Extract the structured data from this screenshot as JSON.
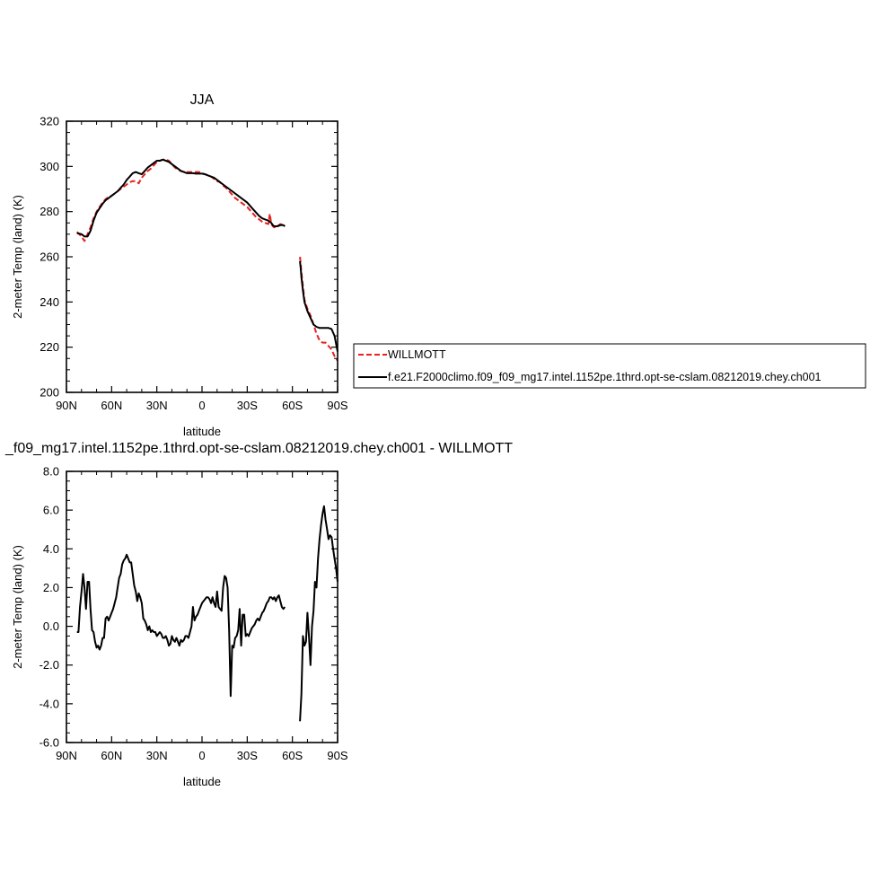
{
  "chart_data": [
    {
      "type": "line",
      "title": "JJA",
      "xlabel": "latitude",
      "ylabel": "2-meter Temp (land) (K)",
      "xlim": [
        90,
        -90
      ],
      "ylim": [
        200,
        320
      ],
      "xtick_values": [
        90,
        60,
        30,
        0,
        -30,
        -60,
        -90
      ],
      "xtick_labels": [
        "90N",
        "60N",
        "30N",
        "0",
        "30S",
        "60S",
        "90S"
      ],
      "ytick_values": [
        200,
        220,
        240,
        260,
        280,
        300,
        320
      ],
      "ytick_labels": [
        "200",
        "220",
        "240",
        "260",
        "280",
        "300",
        "320"
      ],
      "legend": {
        "placement": "right",
        "entries": [
          {
            "label": "WILLMOTT",
            "color": "#e8201e",
            "dash": "dashed"
          },
          {
            "label": "f.e21.F2000climo.f09_f09_mg17.intel.1152pe.1thrd.opt-se-cslam.08212019.chey.ch001",
            "color": "#000000",
            "dash": "solid"
          }
        ]
      },
      "series": [
        {
          "name": "WILLMOTT",
          "color": "#e8201e",
          "segments": [
            {
              "x": [
                83,
                80,
                78,
                76,
                74,
                72,
                70,
                68,
                66,
                64,
                62,
                60,
                58,
                56,
                54,
                52,
                50,
                48,
                46,
                44,
                42,
                40,
                38,
                36,
                34,
                32,
                30,
                28,
                26,
                24,
                22,
                20,
                18,
                16,
                14,
                12,
                10,
                8,
                6,
                4,
                2,
                0,
                -2,
                -4,
                -6,
                -8,
                -10,
                -12,
                -14,
                -16,
                -18,
                -20,
                -22,
                -24,
                -26,
                -28,
                -30,
                -32,
                -34,
                -36,
                -38,
                -40,
                -42,
                -44,
                -45,
                -46,
                -47,
                -48,
                -50,
                -52,
                -54,
                -55
              ],
              "y": [
                271,
                269,
                267,
                270,
                273,
                277,
                280,
                282,
                284,
                285.5,
                286.5,
                287,
                288,
                289,
                290,
                291,
                292,
                293,
                293.5,
                293.5,
                292.5,
                295,
                296.5,
                298,
                299,
                300.5,
                302,
                302.5,
                303,
                303,
                302.5,
                301,
                299.5,
                298.5,
                298,
                297.5,
                297.5,
                297.5,
                297.5,
                297.5,
                297.5,
                297,
                296.5,
                296,
                295.5,
                294.5,
                293.5,
                293,
                291.5,
                290.5,
                289,
                287.5,
                286,
                285,
                284,
                283,
                282,
                280.5,
                279,
                277.5,
                276.5,
                275.5,
                275,
                274.5,
                279,
                274.5,
                273.5,
                273,
                273.5,
                274.5,
                274,
                273.5
              ]
            },
            {
              "x": [
                -65,
                -65.5,
                -66,
                -67,
                -68,
                -70,
                -72,
                -74,
                -76,
                -78,
                -80,
                -82,
                -84,
                -86,
                -88,
                -90
              ],
              "y": [
                260,
                257,
                253,
                247,
                241,
                237,
                234,
                230,
                226,
                223,
                222,
                222,
                220.5,
                219,
                216,
                214
              ]
            }
          ]
        },
        {
          "name": "f.e21.F2000climo.f09_f09_mg17.intel.1152pe.1thrd.opt-se-cslam.08212019.chey.ch001",
          "color": "#000000",
          "segments": [
            {
              "x": [
                83,
                80,
                78,
                76,
                74,
                72,
                70,
                68,
                66,
                64,
                62,
                60,
                58,
                56,
                54,
                52,
                50,
                48,
                46,
                44,
                42,
                40,
                38,
                36,
                34,
                32,
                30,
                28,
                26,
                24,
                22,
                20,
                18,
                16,
                14,
                12,
                10,
                8,
                6,
                4,
                2,
                0,
                -2,
                -4,
                -6,
                -8,
                -10,
                -12,
                -14,
                -16,
                -18,
                -20,
                -22,
                -24,
                -26,
                -28,
                -30,
                -32,
                -34,
                -36,
                -38,
                -40,
                -42,
                -44,
                -45,
                -46,
                -47,
                -48,
                -50,
                -52,
                -54,
                -55
              ],
              "y": [
                270.5,
                270,
                269,
                269,
                271.5,
                276,
                279.5,
                281.5,
                283.5,
                285,
                286,
                287,
                288,
                289,
                290.5,
                292,
                294,
                295.5,
                297,
                297.5,
                297,
                296.5,
                298,
                299.5,
                300.5,
                301.5,
                302.5,
                302.5,
                303,
                302.5,
                302,
                301,
                300,
                299,
                298,
                297.5,
                297,
                297,
                297,
                296.8,
                296.8,
                296.8,
                296.5,
                296,
                295.5,
                295,
                294,
                293,
                292,
                291,
                290,
                289,
                288,
                287,
                286,
                285,
                284,
                282.5,
                281,
                279.5,
                278,
                277,
                276.5,
                276,
                275.5,
                275,
                274,
                273.5,
                273.5,
                274,
                274,
                273.5
              ]
            },
            {
              "x": [
                -65,
                -65.5,
                -66,
                -67,
                -68,
                -70,
                -72,
                -74,
                -76,
                -78,
                -80,
                -82,
                -84,
                -86,
                -88,
                -90
              ],
              "y": [
                258,
                255,
                251,
                245,
                240,
                236,
                233,
                230,
                229,
                228.5,
                228.5,
                228.5,
                228.5,
                228,
                225,
                218
              ]
            }
          ]
        }
      ]
    },
    {
      "type": "line",
      "title": "_f09_mg17.intel.1152pe.1thrd.opt-se-cslam.08212019.chey.ch001 - WILLMOTT",
      "xlabel": "latitude",
      "ylabel": "2-meter Temp (land) (K)",
      "xlim": [
        90,
        -90
      ],
      "ylim": [
        -6,
        8
      ],
      "xtick_values": [
        90,
        60,
        30,
        0,
        -30,
        -60,
        -90
      ],
      "xtick_labels": [
        "90N",
        "60N",
        "30N",
        "0",
        "30S",
        "60S",
        "90S"
      ],
      "ytick_values": [
        -6,
        -4,
        -2,
        0,
        2,
        4,
        6,
        8
      ],
      "ytick_labels": [
        "-6.0",
        "-4.0",
        "-2.0",
        "0.0",
        "2.0",
        "4.0",
        "6.0",
        "8.0"
      ],
      "series": [
        {
          "color": "#000000",
          "segments": [
            {
              "x": [
                83,
                82,
                81,
                80,
                79,
                78,
                77,
                76,
                75,
                74,
                73,
                72,
                71,
                70,
                69,
                68,
                67,
                66,
                65,
                64,
                63,
                62,
                61,
                60,
                59,
                58,
                57,
                56,
                55,
                54,
                53,
                52,
                51,
                50,
                49,
                48,
                47,
                46,
                45,
                44,
                43,
                42,
                41,
                40,
                39,
                38,
                37,
                36,
                35,
                34,
                33,
                32,
                31,
                30,
                29,
                28,
                27,
                26,
                25,
                24,
                23,
                22,
                21,
                20,
                19,
                18,
                17,
                16,
                15,
                14,
                13,
                12,
                11,
                10,
                9,
                8,
                7,
                6,
                5,
                4,
                3,
                2,
                1,
                0,
                -1,
                -2,
                -3,
                -4,
                -5,
                -6,
                -7,
                -8,
                -9,
                -10,
                -11,
                -12,
                -13,
                -14,
                -15,
                -16,
                -17,
                -18,
                -19,
                -20,
                -21,
                -22,
                -23,
                -24,
                -25,
                -26,
                -27,
                -28,
                -29,
                -30,
                -31,
                -32,
                -33,
                -34,
                -35,
                -36,
                -37,
                -38,
                -39,
                -40,
                -41,
                -42,
                -43,
                -44,
                -45,
                -46,
                -47,
                -48,
                -49,
                -50,
                -51,
                -52,
                -53,
                -54,
                -55
              ],
              "y": [
                -0.3,
                -0.3,
                1.0,
                1.8,
                2.7,
                2.0,
                0.9,
                2.3,
                2.3,
                0.9,
                -0.2,
                -0.3,
                -0.8,
                -1.1,
                -1.0,
                -1.2,
                -1.0,
                -0.6,
                -0.6,
                0.4,
                0.5,
                0.3,
                0.5,
                0.7,
                0.9,
                1.2,
                1.5,
                2.0,
                2.5,
                2.7,
                3.2,
                3.4,
                3.5,
                3.7,
                3.5,
                3.3,
                3.3,
                2.7,
                2.1,
                1.8,
                1.3,
                1.7,
                1.5,
                1.2,
                0.4,
                0.3,
                0.1,
                -0.2,
                0.0,
                -0.3,
                -0.2,
                -0.3,
                -0.3,
                -0.5,
                -0.4,
                -0.3,
                -0.4,
                -0.6,
                -0.6,
                -0.5,
                -0.7,
                -1.0,
                -0.9,
                -0.5,
                -0.7,
                -0.8,
                -0.6,
                -0.8,
                -1.0,
                -0.7,
                -0.8,
                -0.7,
                -0.5,
                -0.5,
                -0.6,
                -0.3,
                0.0,
                1.0,
                0.3,
                0.5,
                0.6,
                0.8,
                1.0,
                1.2,
                1.3,
                1.4,
                1.5,
                1.5,
                1.4,
                1.2,
                1.5,
                1.2,
                1.0,
                1.8,
                1.0,
                0.9,
                0.8,
                2.0,
                2.6,
                2.5,
                2.0,
                -0.2,
                -3.6,
                -1.0,
                -1.1,
                -0.6,
                -0.5,
                -0.2,
                0.9,
                -1.0,
                0.6,
                0.6,
                -0.5,
                -0.4,
                -0.5,
                -0.3,
                -0.1,
                0.0,
                0.1,
                0.3,
                0.4,
                0.3,
                0.5,
                0.7,
                0.8,
                1.0,
                1.2,
                1.3,
                1.5,
                1.5,
                1.4,
                1.5,
                1.3,
                1.5,
                1.6,
                1.3,
                1.0,
                0.9,
                1.0
              ]
            },
            {
              "x": [
                -65,
                -66,
                -67,
                -68,
                -69,
                -70,
                -71,
                -72,
                -73,
                -74,
                -75,
                -76,
                -77,
                -78,
                -79,
                -80,
                -81,
                -82,
                -83,
                -84,
                -85,
                -86,
                -87,
                -88,
                -89,
                -90
              ],
              "y": [
                -4.9,
                -3.5,
                -0.5,
                -1.0,
                -0.8,
                0.7,
                -0.5,
                -2.0,
                0.0,
                0.8,
                2.3,
                2.0,
                3.5,
                4.5,
                5.2,
                5.8,
                6.2,
                5.5,
                5.0,
                4.5,
                4.7,
                4.6,
                4.0,
                3.5,
                3.0,
                2.3
              ]
            }
          ]
        }
      ]
    }
  ]
}
